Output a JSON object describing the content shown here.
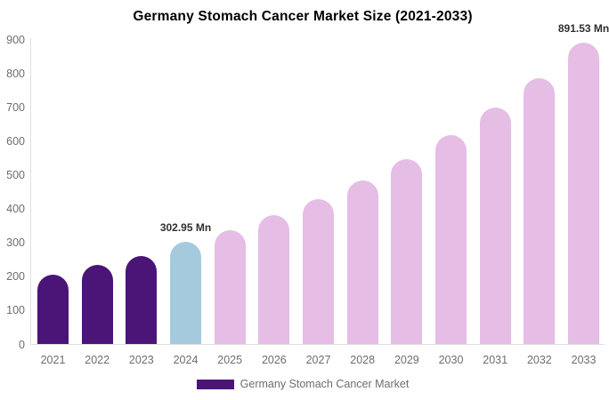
{
  "title": "Germany Stomach Cancer Market Size (2021-2033)",
  "legend": {
    "label": "Germany Stomach Cancer Market",
    "swatch_color": "#4a1577"
  },
  "colors": {
    "historical_bar": "#4a1577",
    "base_year_bar": "#a5cade",
    "forecast_bar": "#e5bde5",
    "axis_line": "#e0e0e0",
    "tick_text": "#6e6e6e",
    "annotation_text": "#2f2f2f",
    "title_text": "#000000"
  },
  "chart_data": {
    "type": "bar",
    "title": "Germany Stomach Cancer Market Size (2021-2033)",
    "xlabel": "",
    "ylabel": "",
    "unit": "Mn",
    "categories": [
      "2021",
      "2022",
      "2023",
      "2024",
      "2025",
      "2026",
      "2027",
      "2028",
      "2029",
      "2030",
      "2031",
      "2032",
      "2033"
    ],
    "series": [
      {
        "name": "Germany Stomach Cancer Market",
        "values": [
          207,
          236,
          262,
          302.95,
          336,
          383,
          430,
          485,
          548,
          619,
          700,
          787,
          891.53
        ]
      }
    ],
    "bar_colors": [
      "#4a1577",
      "#4a1577",
      "#4a1577",
      "#a5cade",
      "#e5bde5",
      "#e5bde5",
      "#e5bde5",
      "#e5bde5",
      "#e5bde5",
      "#e5bde5",
      "#e5bde5",
      "#e5bde5",
      "#e5bde5"
    ],
    "annotations": [
      {
        "index": 3,
        "text": "302.95 Mn"
      },
      {
        "index": 12,
        "text": "891.53 Mn"
      }
    ],
    "ylim": [
      0,
      900
    ],
    "yticks": [
      0,
      100,
      200,
      300,
      400,
      500,
      600,
      700,
      800,
      900
    ],
    "grid": false,
    "legend_position": "bottom"
  }
}
